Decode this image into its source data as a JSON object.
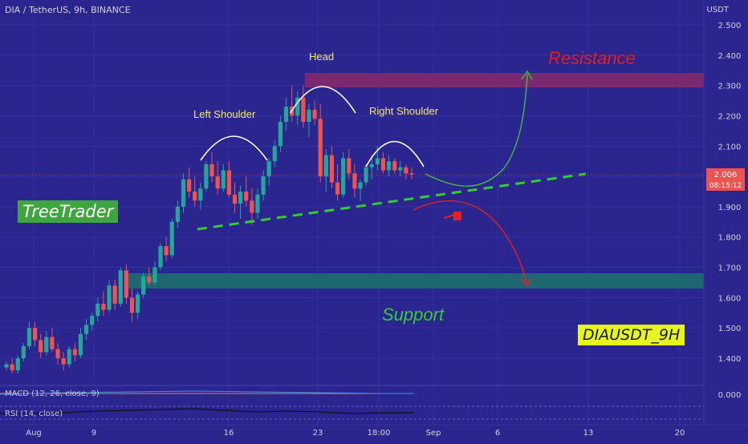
{
  "header": {
    "symbol": "DIA / TetherUS, 9h, BINANCE",
    "currency": "USDT"
  },
  "price_axis": {
    "ticks": [
      "2.500",
      "2.400",
      "2.300",
      "2.200",
      "2.100",
      "2.000",
      "1.900",
      "1.800",
      "1.700",
      "1.600",
      "1.500",
      "1.400",
      "0.000"
    ],
    "current_price": "2.006",
    "countdown": "08:15:12"
  },
  "time_axis": {
    "ticks": [
      "Aug",
      "9",
      "16",
      "23",
      "18:00",
      "Sep",
      "6",
      "13",
      "20"
    ]
  },
  "indicators": {
    "macd_label": "MACD (12, 26, close, 9)",
    "rsi_label": "RSI (14, close)"
  },
  "annotations": {
    "head": "Head",
    "left_shoulder": "Left Shoulder",
    "right_shoulder": "Right Shoulder",
    "resistance": "Resistance",
    "support": "Support",
    "brand": "TreeTrader",
    "pair_tag": "DIAUSDT_9H"
  },
  "colors": {
    "background": "#2b2590",
    "up_candle": "#26a69a",
    "down_candle": "#ef5350",
    "resistance_zone": "#8a2a6a",
    "support_zone": "#1f6a6f",
    "neckline": "#33cc33",
    "bull_arrow": "#3fbf3f",
    "bear_arrow": "#e52020",
    "price_tag": "#ef5350"
  },
  "chart_data": {
    "type": "candlestick",
    "title": "DIA / TetherUS, 9h, BINANCE",
    "ylim": [
      1.3,
      2.55
    ],
    "y_ticks": [
      1.4,
      1.5,
      1.6,
      1.7,
      1.8,
      1.9,
      2.0,
      2.1,
      2.2,
      2.3,
      2.4,
      2.5
    ],
    "x_categories": [
      "Aug",
      "9",
      "16",
      "23",
      "18:00",
      "Sep",
      "6",
      "13",
      "20"
    ],
    "last_price": 2.006,
    "resistance_zone": [
      2.295,
      2.345
    ],
    "support_zone": [
      1.635,
      1.68
    ],
    "pattern": "head-and-shoulders",
    "candles": [
      [
        1.37,
        1.39,
        1.36,
        1.38
      ],
      [
        1.38,
        1.4,
        1.35,
        1.36
      ],
      [
        1.36,
        1.41,
        1.35,
        1.4
      ],
      [
        1.4,
        1.45,
        1.39,
        1.44
      ],
      [
        1.44,
        1.52,
        1.43,
        1.5
      ],
      [
        1.5,
        1.52,
        1.44,
        1.46
      ],
      [
        1.46,
        1.48,
        1.4,
        1.42
      ],
      [
        1.42,
        1.49,
        1.41,
        1.47
      ],
      [
        1.47,
        1.5,
        1.42,
        1.43
      ],
      [
        1.43,
        1.45,
        1.38,
        1.4
      ],
      [
        1.4,
        1.42,
        1.36,
        1.38
      ],
      [
        1.38,
        1.44,
        1.37,
        1.43
      ],
      [
        1.43,
        1.45,
        1.39,
        1.41
      ],
      [
        1.41,
        1.5,
        1.4,
        1.48
      ],
      [
        1.48,
        1.53,
        1.46,
        1.51
      ],
      [
        1.51,
        1.55,
        1.49,
        1.54
      ],
      [
        1.54,
        1.6,
        1.52,
        1.58
      ],
      [
        1.58,
        1.62,
        1.54,
        1.56
      ],
      [
        1.56,
        1.66,
        1.55,
        1.64
      ],
      [
        1.64,
        1.66,
        1.56,
        1.58
      ],
      [
        1.58,
        1.7,
        1.57,
        1.69
      ],
      [
        1.69,
        1.71,
        1.58,
        1.6
      ],
      [
        1.6,
        1.63,
        1.52,
        1.55
      ],
      [
        1.55,
        1.62,
        1.53,
        1.61
      ],
      [
        1.61,
        1.68,
        1.6,
        1.67
      ],
      [
        1.67,
        1.7,
        1.64,
        1.65
      ],
      [
        1.65,
        1.72,
        1.64,
        1.7
      ],
      [
        1.7,
        1.78,
        1.69,
        1.77
      ],
      [
        1.77,
        1.8,
        1.72,
        1.74
      ],
      [
        1.74,
        1.86,
        1.73,
        1.85
      ],
      [
        1.85,
        1.92,
        1.83,
        1.9
      ],
      [
        1.9,
        2.01,
        1.88,
        1.99
      ],
      [
        1.99,
        2.03,
        1.93,
        1.95
      ],
      [
        1.95,
        2.0,
        1.9,
        1.92
      ],
      [
        1.92,
        1.98,
        1.89,
        1.96
      ],
      [
        1.96,
        2.05,
        1.95,
        2.04
      ],
      [
        2.04,
        2.08,
        1.98,
        2.0
      ],
      [
        2.0,
        2.05,
        1.94,
        1.96
      ],
      [
        1.96,
        2.04,
        1.95,
        2.02
      ],
      [
        2.02,
        2.05,
        1.93,
        1.94
      ],
      [
        1.94,
        1.98,
        1.88,
        1.91
      ],
      [
        1.91,
        1.97,
        1.86,
        1.95
      ],
      [
        1.95,
        2.0,
        1.9,
        1.92
      ],
      [
        1.92,
        1.96,
        1.84,
        1.88
      ],
      [
        1.88,
        1.96,
        1.86,
        1.94
      ],
      [
        1.94,
        2.02,
        1.92,
        2.0
      ],
      [
        2.0,
        2.06,
        1.97,
        2.05
      ],
      [
        2.05,
        2.12,
        2.03,
        2.1
      ],
      [
        2.1,
        2.2,
        2.08,
        2.18
      ],
      [
        2.18,
        2.26,
        2.15,
        2.23
      ],
      [
        2.23,
        2.3,
        2.18,
        2.2
      ],
      [
        2.2,
        2.28,
        2.17,
        2.26
      ],
      [
        2.26,
        2.3,
        2.16,
        2.18
      ],
      [
        2.18,
        2.24,
        2.13,
        2.22
      ],
      [
        2.22,
        2.25,
        2.17,
        2.19
      ],
      [
        2.19,
        2.24,
        1.98,
        2.0
      ],
      [
        2.0,
        2.09,
        1.95,
        2.07
      ],
      [
        2.07,
        2.1,
        1.96,
        1.98
      ],
      [
        1.98,
        2.04,
        1.92,
        1.94
      ],
      [
        1.94,
        2.08,
        1.93,
        2.06
      ],
      [
        2.06,
        2.09,
        1.99,
        2.01
      ],
      [
        2.01,
        2.04,
        1.93,
        1.96
      ],
      [
        1.96,
        1.99,
        1.92,
        1.98
      ],
      [
        1.98,
        2.04,
        1.97,
        2.03
      ],
      [
        2.03,
        2.07,
        1.99,
        2.04
      ],
      [
        2.04,
        2.1,
        2.02,
        2.06
      ],
      [
        2.06,
        2.08,
        2.01,
        2.02
      ],
      [
        2.02,
        2.07,
        2.0,
        2.05
      ],
      [
        2.05,
        2.06,
        2.01,
        2.02
      ],
      [
        2.02,
        2.05,
        2.0,
        2.03
      ],
      [
        2.03,
        2.04,
        1.99,
        2.01
      ],
      [
        2.01,
        2.03,
        1.99,
        2.006
      ]
    ]
  }
}
